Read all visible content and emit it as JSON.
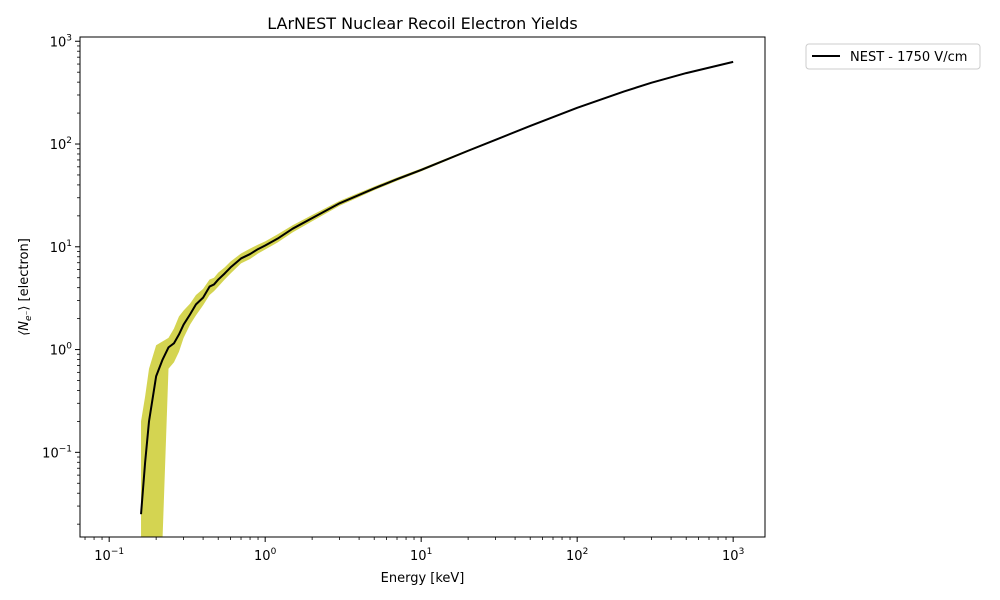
{
  "chart_data": {
    "type": "line",
    "title": "LArNEST Nuclear Recoil Electron Yields",
    "xlabel": "Energy [keV]",
    "ylabel": "⟨N",
    "ylabel_sub": "e⁻",
    "ylabel_rest": "⟩ [electron]",
    "xscale": "log",
    "yscale": "log",
    "xlim": [
      0.065,
      1600
    ],
    "ylim": [
      0.015,
      1100
    ],
    "grid": false,
    "legend_position": "outside-top-right",
    "x_ticks": [
      {
        "value": 0.1,
        "base": "10",
        "exp": "−1"
      },
      {
        "value": 1,
        "base": "10",
        "exp": "0"
      },
      {
        "value": 10,
        "base": "10",
        "exp": "1"
      },
      {
        "value": 100,
        "base": "10",
        "exp": "2"
      },
      {
        "value": 1000,
        "base": "10",
        "exp": "3"
      }
    ],
    "y_ticks": [
      {
        "value": 0.1,
        "base": "10",
        "exp": "−1"
      },
      {
        "value": 1,
        "base": "10",
        "exp": "0"
      },
      {
        "value": 10,
        "base": "10",
        "exp": "1"
      },
      {
        "value": 100,
        "base": "10",
        "exp": "2"
      },
      {
        "value": 1000,
        "base": "10",
        "exp": "3"
      }
    ],
    "series": [
      {
        "name": "NEST - 1750 V/cm",
        "color": "#000000",
        "x": [
          0.16,
          0.17,
          0.18,
          0.2,
          0.22,
          0.24,
          0.26,
          0.28,
          0.3,
          0.33,
          0.36,
          0.4,
          0.44,
          0.47,
          0.5,
          0.55,
          0.6,
          0.7,
          0.8,
          0.9,
          1.0,
          1.2,
          1.5,
          2,
          3,
          5,
          7,
          10,
          20,
          30,
          50,
          100,
          200,
          300,
          500,
          1000
        ],
        "y": [
          0.025,
          0.08,
          0.2,
          0.55,
          0.8,
          1.05,
          1.15,
          1.4,
          1.75,
          2.2,
          2.75,
          3.2,
          4.1,
          4.3,
          4.8,
          5.5,
          6.3,
          7.7,
          8.5,
          9.5,
          10.3,
          12.0,
          15.0,
          19.0,
          26.5,
          37.0,
          45.5,
          56.0,
          86.0,
          110.0,
          150.0,
          225.0,
          325.0,
          395.0,
          490.0,
          630.0
        ]
      }
    ],
    "band": {
      "color": "#cccc33",
      "x": [
        0.16,
        0.17,
        0.18,
        0.2,
        0.22,
        0.24,
        0.26,
        0.28,
        0.3,
        0.33,
        0.36,
        0.4,
        0.44,
        0.47,
        0.5,
        0.55,
        0.6,
        0.7,
        0.8,
        0.9,
        1.0,
        1.2,
        1.5,
        2,
        3,
        5,
        7,
        10,
        20,
        30,
        50,
        100,
        200,
        300,
        500,
        1000
      ],
      "upper": [
        0.2,
        0.35,
        0.65,
        1.1,
        1.2,
        1.3,
        1.6,
        2.1,
        2.4,
        2.8,
        3.4,
        3.9,
        4.8,
        5.0,
        5.6,
        6.3,
        7.2,
        8.6,
        9.6,
        10.5,
        11.3,
        13.2,
        16.2,
        20.4,
        28.0,
        38.6,
        47.3,
        57.8,
        88.0,
        112.0,
        152.0,
        227.0,
        327.0,
        398.0,
        493.0,
        634.0
      ],
      "lower": [
        0.015,
        0.015,
        0.015,
        0.015,
        0.015,
        0.65,
        0.75,
        0.95,
        1.3,
        1.75,
        2.15,
        2.7,
        3.4,
        3.7,
        4.1,
        4.8,
        5.5,
        6.9,
        7.6,
        8.6,
        9.4,
        11.0,
        13.8,
        17.7,
        25.1,
        35.5,
        43.8,
        54.2,
        84.0,
        108.0,
        148.0,
        223.0,
        323.0,
        392.0,
        487.0,
        626.0
      ]
    }
  }
}
